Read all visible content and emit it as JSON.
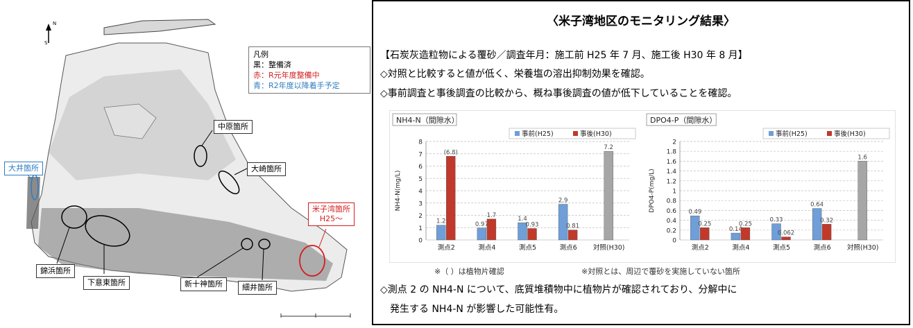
{
  "map": {
    "compass": "N S",
    "legend": {
      "title": "凡例",
      "black": "黒：整備済",
      "red": "赤：R元年度整備中",
      "blue": "青：R2年度以降着手予定"
    },
    "labels": {
      "nakahara": "中原箇所",
      "osaki": "大崎箇所",
      "oi": "大井箇所",
      "yonago_name": "米子湾箇所",
      "yonago_year": "H25～",
      "kinhama": "錦浜箇所",
      "shimoikuto": "下意東箇所",
      "shinjujin": "新十神箇所",
      "hosoi": "細井箇所"
    },
    "colors": {
      "red": "#d21e1e",
      "blue": "#2e7dc0"
    }
  },
  "results": {
    "title": "〈米子湾地区のモニタリング結果〉",
    "line1": "【石炭灰造粒物による覆砂／調査年月：施工前 H25 年 7 月、施工後 H30 年 8 月】",
    "line2": "◇対照と比較すると値が低く、栄養塩の溶出抑制効果を確認。",
    "line3": "◇事前調査と事後調査の比較から、概ね事後調査の値が低下していることを確認。",
    "note_plant": "※（ ）は植物片確認",
    "note_control": "※対照とは、周辺で覆砂を実施していない箇所",
    "conclusion1": "◇測点 2 の NH4-N について、底質堆積物中に植物片が確認されており、分解中に",
    "conclusion2": "　発生する NH4-N が影響した可能性有。"
  },
  "chart_data": [
    {
      "type": "bar",
      "title": "NH4-N（間隙水）",
      "ylabel": "NH4-N(mg/L)",
      "ylim": [
        0,
        8
      ],
      "yticks": [
        "0",
        "1",
        "2",
        "3",
        "4",
        "5",
        "6",
        "7",
        "8"
      ],
      "categories": [
        "測点2",
        "測点4",
        "測点5",
        "測点6",
        "対照(H30)"
      ],
      "series": [
        {
          "name": "事前(H25)",
          "color": "#6f9ed8",
          "values": [
            1.2,
            0.97,
            1.4,
            2.9,
            null
          ],
          "labels": [
            "1.2",
            "0.97",
            "1.4",
            "2.9",
            ""
          ]
        },
        {
          "name": "事後(H30)",
          "color": "#c0392b",
          "values": [
            6.8,
            1.7,
            0.93,
            0.81,
            null
          ],
          "labels": [
            "(6.8)",
            "1.7",
            "0.93",
            "0.81",
            ""
          ]
        },
        {
          "name": "",
          "color": "#a6a6a6",
          "values": [
            null,
            null,
            null,
            null,
            7.2
          ],
          "labels": [
            "",
            "",
            "",
            "",
            "7.2"
          ]
        }
      ],
      "grid": true,
      "legend_position": "top-right"
    },
    {
      "type": "bar",
      "title": "DPO4-P（間隙水）",
      "ylabel": "DPO4-P(mg/L)",
      "ylim": [
        0,
        2
      ],
      "yticks": [
        "0",
        "0.2",
        "0.4",
        "0.6",
        "0.8",
        "1",
        "1.2",
        "1.4",
        "1.6",
        "1.8",
        "2"
      ],
      "categories": [
        "測点2",
        "測点4",
        "測点5",
        "測点6",
        "対照(H30)"
      ],
      "series": [
        {
          "name": "事前(H25)",
          "color": "#6f9ed8",
          "values": [
            0.49,
            0.14,
            0.33,
            0.64,
            null
          ],
          "labels": [
            "0.49",
            "0.14",
            "0.33",
            "0.64",
            ""
          ]
        },
        {
          "name": "事後(H30)",
          "color": "#c0392b",
          "values": [
            0.25,
            0.25,
            0.062,
            0.32,
            null
          ],
          "labels": [
            "0.25",
            "0.25",
            "0.062",
            "0.32",
            ""
          ]
        },
        {
          "name": "",
          "color": "#a6a6a6",
          "values": [
            null,
            null,
            null,
            null,
            1.6
          ],
          "labels": [
            "",
            "",
            "",
            "",
            "1.6"
          ]
        }
      ],
      "grid": true,
      "legend_position": "top-right"
    }
  ]
}
